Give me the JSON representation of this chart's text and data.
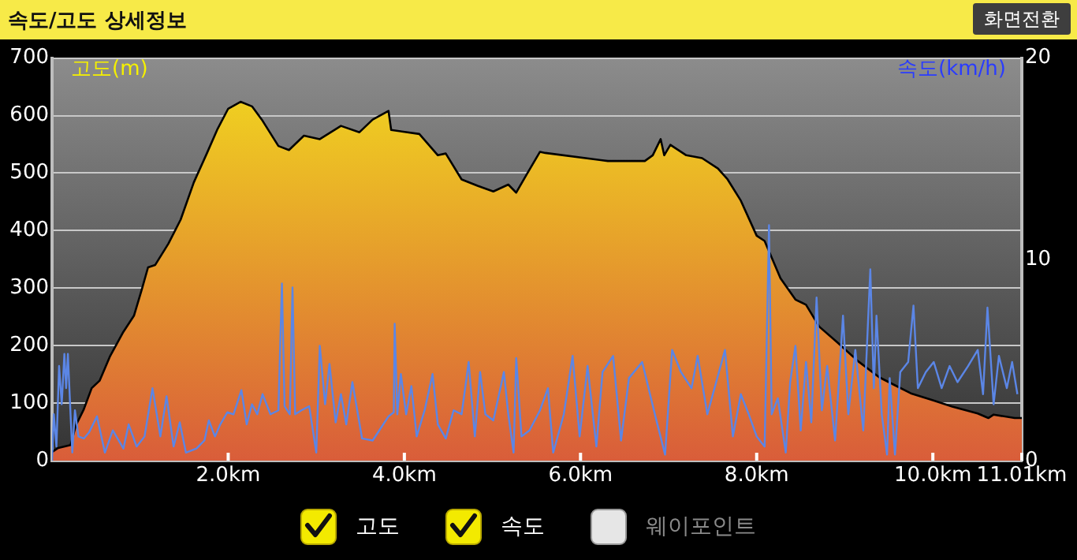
{
  "chart_data": {
    "type": "line",
    "title": "속도/고도 상세정보",
    "ylabel": "고도(m)",
    "y2label": "속도(km/h)",
    "annotations": [
      "화면전환",
      "고도",
      "속도",
      "웨이포인트"
    ],
    "xlim": [
      0,
      11.01
    ],
    "xticks": [
      {
        "value": 2,
        "label": "2.0km"
      },
      {
        "value": 4,
        "label": "4.0km"
      },
      {
        "value": 6,
        "label": "6.0km"
      },
      {
        "value": 8,
        "label": "8.0km"
      },
      {
        "value": 10,
        "label": "10.0km"
      },
      {
        "value": 11.01,
        "label": "11.01km"
      }
    ],
    "ylim": [
      0,
      700
    ],
    "yticks": [
      0,
      100,
      200,
      300,
      400,
      500,
      600,
      700
    ],
    "y2lim": [
      0,
      20
    ],
    "y2ticks": [
      0,
      10,
      20
    ],
    "grid": "y",
    "legend": false,
    "marker": "none",
    "series": [
      {
        "type": "area",
        "color": "#f2dc1e",
        "x": [
          0,
          0.07,
          0.21,
          0.27,
          0.36,
          0.45,
          0.54,
          0.66,
          0.81,
          0.93,
          1.02,
          1.09,
          1.17,
          1.32,
          1.46,
          1.61,
          1.76,
          1.88,
          2.0,
          2.14,
          2.27,
          2.39,
          2.57,
          2.69,
          2.86,
          3.04,
          3.28,
          3.49,
          3.64,
          3.82,
          3.85,
          4.17,
          4.38,
          4.47,
          4.65,
          4.83,
          5.01,
          5.18,
          5.27,
          5.39,
          5.54,
          5.6,
          6.31,
          6.73,
          6.82,
          6.91,
          6.95,
          7.02,
          7.2,
          7.38,
          7.56,
          7.67,
          7.82,
          8.0,
          8.09,
          8.27,
          8.44,
          8.56,
          8.71,
          8.92,
          9.15,
          9.39,
          9.57,
          9.75,
          9.98,
          10.22,
          10.51,
          10.63,
          10.69,
          10.93,
          11.01
        ],
        "values": [
          15,
          22,
          27,
          61,
          89,
          126,
          139,
          182,
          224,
          252,
          298,
          336,
          340,
          377,
          419,
          484,
          535,
          577,
          612,
          624,
          616,
          591,
          547,
          540,
          565,
          559,
          582,
          571,
          593,
          608,
          575,
          568,
          531,
          534,
          489,
          478,
          468,
          480,
          466,
          498,
          537,
          535,
          521,
          521,
          531,
          559,
          531,
          549,
          531,
          526,
          508,
          489,
          452,
          391,
          382,
          317,
          280,
          271,
          233,
          205,
          173,
          145,
          131,
          117,
          106,
          94,
          82,
          74,
          80,
          74,
          74
        ]
      },
      {
        "type": "line",
        "axis": "y2",
        "color": "#5b86e6",
        "x": [
          0,
          0.02,
          0.05,
          0.08,
          0.11,
          0.14,
          0.16,
          0.18,
          0.21,
          0.23,
          0.26,
          0.3,
          0.36,
          0.42,
          0.51,
          0.6,
          0.69,
          0.81,
          0.87,
          0.96,
          1.05,
          1.14,
          1.23,
          1.3,
          1.38,
          1.45,
          1.52,
          1.64,
          1.73,
          1.78,
          1.85,
          1.91,
          1.99,
          2.06,
          2.15,
          2.21,
          2.27,
          2.33,
          2.39,
          2.48,
          2.57,
          2.61,
          2.64,
          2.7,
          2.73,
          2.76,
          2.83,
          2.92,
          3.0,
          3.04,
          3.1,
          3.15,
          3.22,
          3.28,
          3.34,
          3.41,
          3.52,
          3.64,
          3.82,
          3.88,
          3.89,
          3.92,
          3.96,
          4.02,
          4.08,
          4.14,
          4.23,
          4.32,
          4.38,
          4.47,
          4.56,
          4.65,
          4.73,
          4.8,
          4.86,
          4.92,
          5.01,
          5.13,
          5.18,
          5.24,
          5.27,
          5.33,
          5.42,
          5.54,
          5.63,
          5.69,
          5.81,
          5.91,
          5.99,
          6.08,
          6.18,
          6.25,
          6.37,
          6.46,
          6.55,
          6.7,
          6.85,
          6.96,
          7.04,
          7.14,
          7.26,
          7.33,
          7.44,
          7.54,
          7.64,
          7.73,
          7.82,
          7.91,
          8.0,
          8.09,
          8.14,
          8.17,
          8.24,
          8.33,
          8.38,
          8.44,
          8.5,
          8.56,
          8.62,
          8.68,
          8.74,
          8.8,
          8.89,
          8.98,
          9.04,
          9.12,
          9.21,
          9.29,
          9.33,
          9.36,
          9.42,
          9.48,
          9.51,
          9.57,
          9.63,
          9.72,
          9.78,
          9.83,
          9.92,
          10.01,
          10.1,
          10.19,
          10.28,
          10.4,
          10.51,
          10.57,
          10.62,
          10.69,
          10.75,
          10.84,
          10.9,
          10.96
        ],
        "values": [
          0,
          2.3,
          0.7,
          4.7,
          2.8,
          5.3,
          3.6,
          5.3,
          2.3,
          0.4,
          2.5,
          1.2,
          1.1,
          1.4,
          2.2,
          0.4,
          1.5,
          0.6,
          1.8,
          0.7,
          1.2,
          3.6,
          1.2,
          3.2,
          0.7,
          1.9,
          0.4,
          0.6,
          1.0,
          2.0,
          1.2,
          1.8,
          2.4,
          2.3,
          3.5,
          1.8,
          2.8,
          2.3,
          3.3,
          2.3,
          2.5,
          8.8,
          2.7,
          2.3,
          8.6,
          2.3,
          2.5,
          2.7,
          0.4,
          5.7,
          2.8,
          4.8,
          1.9,
          3.3,
          1.8,
          3.9,
          1.1,
          1.0,
          2.2,
          2.4,
          6.8,
          2.3,
          4.3,
          2.3,
          3.7,
          1.2,
          2.5,
          4.3,
          1.8,
          1.1,
          2.5,
          2.3,
          4.9,
          1.2,
          4.4,
          2.3,
          2.0,
          4.4,
          2.3,
          0.4,
          5.1,
          1.2,
          1.5,
          2.5,
          3.6,
          0.4,
          2.3,
          5.2,
          1.2,
          4.7,
          0.7,
          4.4,
          5.2,
          1.0,
          4.1,
          4.9,
          2.2,
          0.3,
          5.5,
          4.4,
          3.6,
          5.2,
          2.3,
          3.9,
          5.5,
          1.2,
          3.3,
          2.3,
          1.2,
          0.7,
          11.7,
          2.3,
          3.1,
          0.4,
          3.9,
          5.7,
          1.5,
          4.9,
          1.9,
          8.1,
          2.5,
          4.7,
          1.0,
          7.2,
          2.3,
          5.5,
          1.5,
          9.5,
          3.6,
          7.2,
          2.3,
          0.3,
          4.1,
          0.3,
          4.4,
          4.9,
          7.7,
          3.6,
          4.4,
          4.9,
          3.6,
          4.7,
          3.9,
          4.7,
          5.5,
          3.3,
          7.6,
          2.8,
          5.2,
          3.6,
          4.9,
          3.3
        ]
      }
    ]
  }
}
